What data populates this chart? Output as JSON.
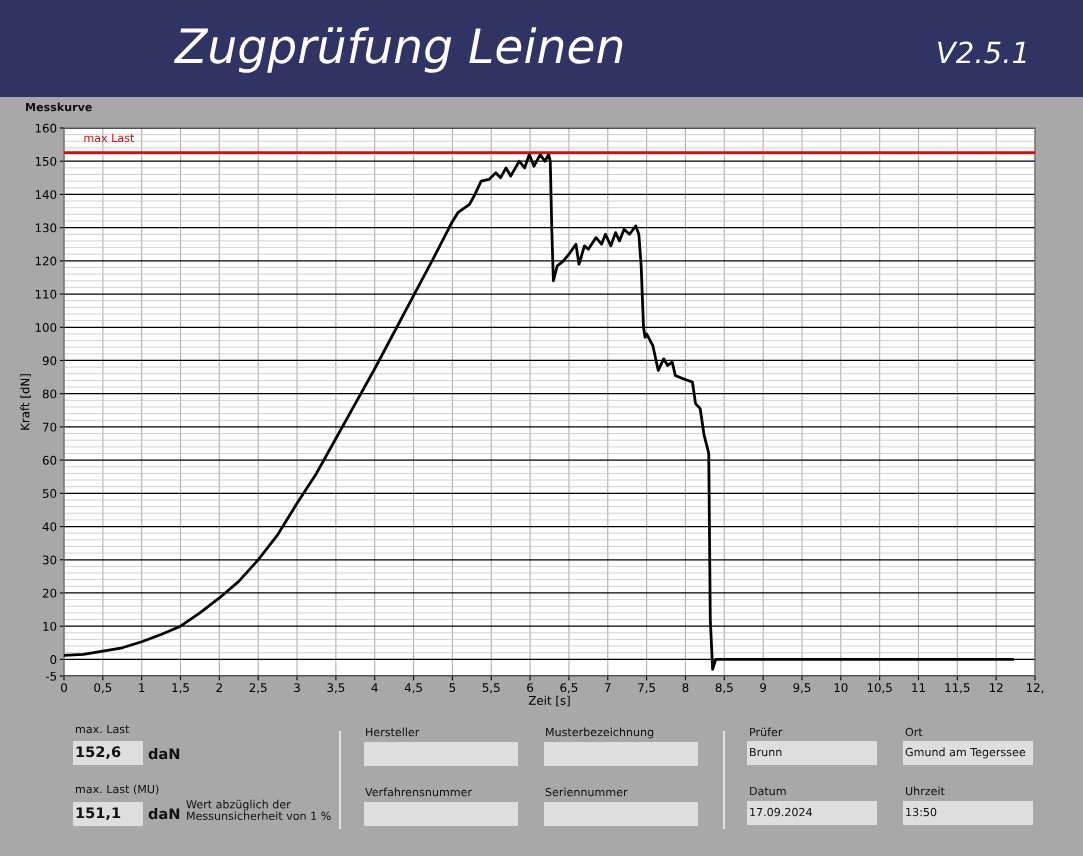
{
  "chart_data": {
    "type": "line",
    "title": "Zugprüfung Leinen",
    "subtitle": "V2.5.1",
    "xlabel": "Zeit [s]",
    "ylabel": "Kraft [dN]",
    "x": [
      0,
      0.25,
      0.5,
      0.75,
      1,
      1.25,
      1.5,
      1.75,
      2,
      2.25,
      2.5,
      2.75,
      3,
      3.25,
      3.5,
      3.75,
      4,
      4.25,
      4.5,
      4.75,
      4.98,
      5.07,
      5.22,
      5.29,
      5.37,
      5.47,
      5.56,
      5.62,
      5.69,
      5.75,
      5.86,
      5.93,
      5.99,
      6.05,
      6.13,
      6.19,
      6.24,
      6.26,
      6.28,
      6.3,
      6.35,
      6.43,
      6.5,
      6.59,
      6.63,
      6.7,
      6.75,
      6.85,
      6.92,
      6.97,
      7.04,
      7.1,
      7.15,
      7.21,
      7.28,
      7.36,
      7.4,
      7.43,
      7.46,
      7.48,
      7.5,
      7.58,
      7.65,
      7.72,
      7.77,
      7.83,
      7.87,
      7.97,
      8.09,
      8.13,
      8.19,
      8.24,
      8.29,
      8.3,
      8.32,
      8.35,
      8.39,
      9,
      10,
      11,
      12.21
    ],
    "series": [
      {
        "color": "#000000",
        "values": [
          1.2,
          1.5,
          2.5,
          3.5,
          5.3,
          7.5,
          10,
          14,
          18.5,
          23.5,
          30,
          37.5,
          47,
          56,
          66.5,
          77,
          87.5,
          98.5,
          109.5,
          120.5,
          131,
          134.5,
          137,
          140,
          144,
          144.5,
          146.5,
          145,
          148,
          145.5,
          150,
          148,
          152,
          148.5,
          152,
          150,
          152,
          150,
          129,
          114,
          118.5,
          120,
          122,
          125,
          119,
          124.5,
          123.5,
          127,
          125,
          128,
          124.5,
          128.5,
          126,
          129.5,
          128,
          130.5,
          128,
          118.5,
          100,
          97,
          98,
          94.5,
          87,
          90.5,
          88.5,
          89.5,
          85.5,
          84.5,
          83.5,
          77,
          75.5,
          67.5,
          63,
          62,
          12,
          -3,
          0,
          0,
          0,
          0,
          0
        ]
      }
    ],
    "xlim": [
      0,
      12.5
    ],
    "xticks": [
      0,
      {
        "value": 0.5,
        "label": "0,5"
      },
      1,
      {
        "value": 1.5,
        "label": "1,5"
      },
      2,
      {
        "value": 2.5,
        "label": "2,5"
      },
      3,
      {
        "value": 3.5,
        "label": "3,5"
      },
      4,
      {
        "value": 4.5,
        "label": "4,5"
      },
      5,
      {
        "value": 5.5,
        "label": "5,5"
      },
      6,
      {
        "value": 6.5,
        "label": "6,5"
      },
      7,
      {
        "value": 7.5,
        "label": "7,5"
      },
      8,
      {
        "value": 8.5,
        "label": "8,5"
      },
      9,
      {
        "value": 9.5,
        "label": "9,5"
      },
      10,
      {
        "value": 10.5,
        "label": "10,5"
      },
      11,
      {
        "value": 11.5,
        "label": "11,5"
      },
      12,
      {
        "value": 12.5,
        "label": "12,"
      }
    ],
    "ylim": [
      -5,
      160
    ],
    "yticks": [
      -5,
      0,
      10,
      20,
      30,
      40,
      50,
      60,
      70,
      80,
      90,
      100,
      110,
      120,
      130,
      140,
      150,
      160
    ],
    "grid": true,
    "ref_lines": [
      {
        "axis": "y",
        "value": 152.6,
        "label": "max Last",
        "color": "#cc1111"
      }
    ],
    "annotations": [
      "Messkurve",
      "max. Last",
      "152,6",
      "daN",
      "max. Last (MU)",
      "151,1",
      "daN",
      "Wert abzüglich der\nMessunsicherheit von 1 %",
      "Hersteller",
      "Verfahrensnummer",
      "Musterbezeichnung",
      "Seriennummer",
      "Prüfer",
      "Brunn",
      "Datum",
      "17.09.2024",
      "Ort",
      "Gmund am Tegerssee",
      "Uhrzeit",
      "13:50"
    ]
  }
}
